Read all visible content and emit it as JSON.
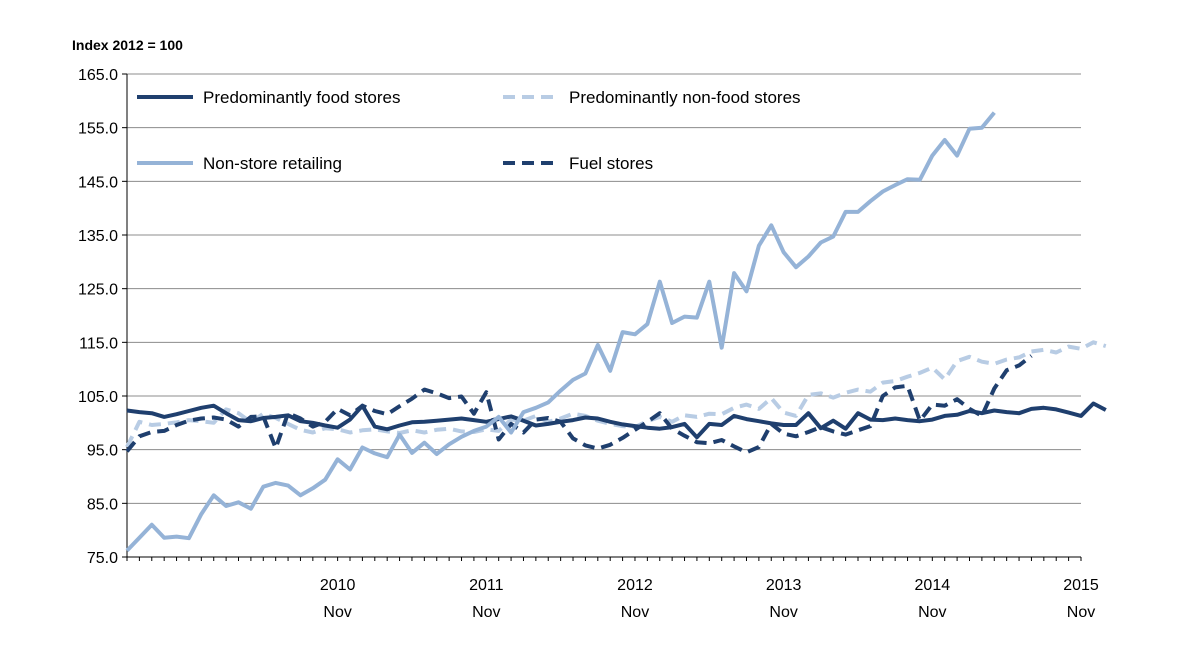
{
  "chart_data": {
    "type": "line",
    "title": "",
    "ylabel": "Index 2012 = 100",
    "xlabel": "",
    "ylim": [
      75,
      165
    ],
    "yticks": [
      "165.0",
      "155.0",
      "145.0",
      "135.0",
      "125.0",
      "115.0",
      "105.0",
      "95.0",
      "85.0",
      "75.0"
    ],
    "x_start": "2009-06",
    "x_end": "2015-11",
    "xtick_years": [
      "2010",
      "2011",
      "2012",
      "2013",
      "2014",
      "2015"
    ],
    "xtick_month": "Nov",
    "grid": "horizontal",
    "legend_position": "top-left",
    "series": [
      {
        "name": "Predominantly food stores",
        "color": "#1f3f6e",
        "dash": "solid",
        "values": [
          102.3,
          102.0,
          101.8,
          101.1,
          101.6,
          102.2,
          102.8,
          103.2,
          101.8,
          100.5,
          100.3,
          100.9,
          101.1,
          101.4,
          100.3,
          100.0,
          99.5,
          99.1,
          100.6,
          103.2,
          99.3,
          98.8,
          99.5,
          100.1,
          100.2,
          100.4,
          100.6,
          100.8,
          100.5,
          100.2,
          100.7,
          101.2,
          100.4,
          99.5,
          99.8,
          100.2,
          100.5,
          101.0,
          100.8,
          100.2,
          99.7,
          99.4,
          99.1,
          98.9,
          99.2,
          99.8,
          97.3,
          99.8,
          99.6,
          101.3,
          100.7,
          100.3,
          99.9,
          99.6,
          99.6,
          101.8,
          99.0,
          100.4,
          98.9,
          101.8,
          100.6,
          100.5,
          100.8,
          100.5,
          100.3,
          100.6,
          101.3,
          101.5,
          102.2,
          101.8,
          102.3,
          102.0,
          101.8,
          102.6,
          102.8,
          102.5,
          101.9,
          101.3,
          103.6,
          102.4
        ]
      },
      {
        "name": "Predominantly non-food stores",
        "color": "#b8cce4",
        "dash": "dashed",
        "values": [
          95.5,
          100.2,
          99.6,
          99.8,
          100.1,
          100.5,
          100.3,
          100.0,
          102.5,
          101.8,
          100.1,
          101.7,
          100.9,
          99.8,
          98.7,
          98.2,
          99.0,
          98.8,
          98.2,
          98.6,
          98.8,
          98.4,
          98.1,
          98.6,
          98.2,
          98.7,
          98.9,
          98.4,
          98.3,
          98.8,
          98.5,
          100.6,
          100.4,
          101.3,
          100.2,
          100.8,
          101.7,
          101.3,
          100.4,
          99.8,
          99.4,
          99.2,
          100.3,
          101.1,
          100.2,
          101.4,
          101.1,
          101.7,
          101.6,
          102.8,
          103.4,
          102.6,
          104.6,
          101.9,
          101.3,
          105.2,
          105.5,
          104.7,
          105.6,
          106.2,
          105.8,
          107.5,
          107.8,
          108.6,
          109.3,
          110.3,
          108.1,
          111.5,
          112.3,
          111.4,
          111.0,
          111.8,
          112.2,
          113.3,
          113.6,
          113.1,
          114.2,
          113.8,
          115.0,
          114.3
        ]
      },
      {
        "name": "Non-store retailing",
        "color": "#95b3d7",
        "dash": "solid",
        "values": [
          76.2,
          78.6,
          81.0,
          78.6,
          78.8,
          78.5,
          83.0,
          86.5,
          84.5,
          85.2,
          84.0,
          88.1,
          88.8,
          88.3,
          86.5,
          87.8,
          89.4,
          93.2,
          91.3,
          95.4,
          94.3,
          93.6,
          97.8,
          94.4,
          96.3,
          94.2,
          96.0,
          97.4,
          98.5,
          99.3,
          101.1,
          98.2,
          102.0,
          102.8,
          103.8,
          106.0,
          108.0,
          109.2,
          114.5,
          109.7,
          116.9,
          116.5,
          118.4,
          126.3,
          118.6,
          119.8,
          119.6,
          126.3,
          114.0,
          127.9,
          124.5,
          133.0,
          136.8,
          131.8,
          129.0,
          131.0,
          133.6,
          134.7,
          139.3,
          139.3,
          141.3,
          143.1,
          144.3,
          145.4,
          145.3,
          149.8,
          152.7,
          149.8,
          154.8,
          155.0,
          157.8
        ]
      },
      {
        "name": "Fuel stores",
        "color": "#1f3f6e",
        "dash": "dashed",
        "values": [
          94.7,
          97.5,
          98.3,
          98.5,
          99.6,
          100.4,
          100.8,
          101.0,
          100.6,
          99.3,
          101.1,
          101.2,
          95.3,
          101.8,
          100.8,
          99.3,
          100.2,
          102.6,
          101.4,
          103.2,
          102.2,
          101.6,
          103.1,
          104.5,
          106.2,
          105.5,
          104.6,
          104.9,
          101.7,
          105.7,
          96.9,
          99.8,
          98.2,
          100.6,
          100.9,
          100.2,
          97.1,
          95.8,
          95.2,
          95.9,
          97.2,
          98.7,
          100.2,
          101.8,
          98.9,
          97.6,
          96.4,
          96.2,
          96.8,
          95.6,
          94.5,
          95.5,
          99.8,
          98.0,
          97.5,
          98.3,
          99.2,
          98.4,
          97.8,
          98.6,
          99.4,
          105.0,
          106.6,
          106.9,
          100.4,
          103.4,
          103.2,
          104.4,
          102.6,
          101.3,
          106.4,
          109.8,
          110.7,
          112.5
        ]
      }
    ]
  }
}
